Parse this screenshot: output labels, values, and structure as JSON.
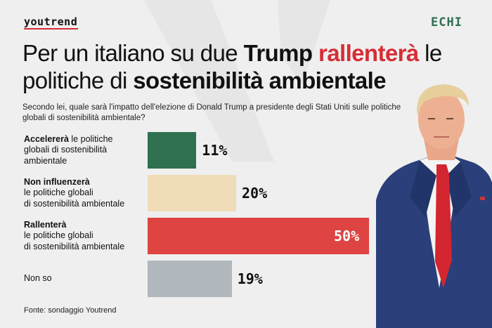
{
  "brand": {
    "logo": "youtrend",
    "partner": "ECHI"
  },
  "title": {
    "part1": "Per un italiano su due ",
    "bold1": "Trump",
    "red": "rallenterà",
    "part2": " le politiche di ",
    "bold2": "sostenibilità ambientale"
  },
  "subtitle": "Secondo lei, quale sarà l'impatto dell'elezione di Donald Trump a presidente degli Stati Uniti sulle politiche globali di sostenibilità ambientale?",
  "source": "Fonte: sondaggio Youtrend",
  "colors": {
    "accelera": "#2e7050",
    "non_influenzera": "#f0ddb8",
    "rallentera": "#dd4442",
    "non_so": "#b0b8bd",
    "accent": "#d62d35"
  },
  "chart_data": {
    "type": "bar",
    "orientation": "horizontal",
    "categories": [
      {
        "bold": "Accelererà",
        "rest1": " le politiche",
        "rest2": "globali di sostenibilità",
        "rest3": "ambientale"
      },
      {
        "bold": "Non influenzerà",
        "rest1": "",
        "rest2": "le politiche globali",
        "rest3": "di sostenibilità ambientale"
      },
      {
        "bold": "Rallenterà",
        "rest1": "",
        "rest2": "le politiche globali",
        "rest3": "di sostenibilità ambientale"
      },
      {
        "bold": "",
        "rest1": "Non so",
        "rest2": "",
        "rest3": ""
      }
    ],
    "values": [
      11,
      20,
      50,
      19
    ],
    "value_labels": [
      "11%",
      "20%",
      "50%",
      "19%"
    ],
    "unit": "%",
    "xlim": [
      0,
      50
    ]
  }
}
